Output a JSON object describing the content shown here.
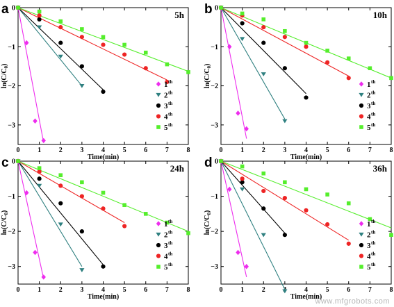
{
  "watermark": "www.mfgrobots.com",
  "colors": {
    "1th": "#ee2cee",
    "2th": "#2f8080",
    "3th": "#000000",
    "4th": "#ee2424",
    "5th": "#55ee2c"
  },
  "markers": {
    "1th": "diamond",
    "2th": "triangle-down",
    "3th": "circle",
    "4th": "circle",
    "5th": "square"
  },
  "chart_data": [
    {
      "type": "scatter",
      "panel": "a",
      "title": "5h",
      "xlabel": "Time(min)",
      "ylabel": "ln(C/C0)",
      "xlim": [
        0,
        8
      ],
      "ylim": [
        -3.5,
        0
      ],
      "xticks": [
        "0",
        "1",
        "2",
        "3",
        "4",
        "5",
        "6",
        "7",
        "8"
      ],
      "yticks": [
        "0",
        "-1",
        "-2",
        "-3"
      ],
      "legend_position": "right",
      "series": [
        {
          "name": "1th",
          "x": [
            0,
            0.4,
            0.8,
            1.2
          ],
          "y": [
            0,
            -0.9,
            -2.9,
            -3.4
          ],
          "fit_end": [
            1.2,
            -3.45
          ]
        },
        {
          "name": "2th",
          "x": [
            0,
            1,
            2,
            3
          ],
          "y": [
            0,
            -0.5,
            -1.25,
            -2.0
          ],
          "fit_end": [
            3,
            -2.0
          ]
        },
        {
          "name": "3th",
          "x": [
            0,
            1,
            2,
            3,
            4
          ],
          "y": [
            0,
            -0.3,
            -0.9,
            -1.5,
            -2.15
          ],
          "fit_end": [
            4,
            -2.1
          ]
        },
        {
          "name": "4th",
          "x": [
            0,
            1,
            2,
            3,
            4,
            5,
            6,
            7
          ],
          "y": [
            0,
            -0.2,
            -0.5,
            -0.75,
            -0.95,
            -1.2,
            -1.55,
            -1.9
          ],
          "fit_end": [
            7,
            -1.85
          ]
        },
        {
          "name": "5th",
          "x": [
            0,
            1,
            2,
            3,
            4,
            5,
            6,
            7,
            8
          ],
          "y": [
            0,
            -0.1,
            -0.35,
            -0.55,
            -0.75,
            -0.95,
            -1.15,
            -1.45,
            -1.65
          ],
          "fit_end": [
            8,
            -1.63
          ]
        }
      ]
    },
    {
      "type": "scatter",
      "panel": "b",
      "title": "10h",
      "xlabel": "Time(min)",
      "ylabel": "ln(C/C0)",
      "xlim": [
        0,
        8
      ],
      "ylim": [
        -3.5,
        0
      ],
      "xticks": [
        "0",
        "1",
        "2",
        "3",
        "4",
        "5",
        "6",
        "7",
        "8"
      ],
      "yticks": [
        "0",
        "-1",
        "-2",
        "-3"
      ],
      "legend_position": "right",
      "series": [
        {
          "name": "1th",
          "x": [
            0,
            0.4,
            0.8,
            1.2
          ],
          "y": [
            0,
            -1.0,
            -2.7,
            -3.1
          ],
          "fit_end": [
            1.2,
            -3.35
          ]
        },
        {
          "name": "2th",
          "x": [
            0,
            1,
            2,
            3
          ],
          "y": [
            0,
            -0.8,
            -1.7,
            -2.9
          ],
          "fit_end": [
            3,
            -2.85
          ]
        },
        {
          "name": "3th",
          "x": [
            0,
            1,
            2,
            3,
            4
          ],
          "y": [
            0,
            -0.4,
            -0.9,
            -1.55,
            -2.3
          ],
          "fit_end": [
            4,
            -2.2
          ]
        },
        {
          "name": "4th",
          "x": [
            0,
            1,
            2,
            3,
            4,
            5,
            6
          ],
          "y": [
            0,
            -0.2,
            -0.5,
            -0.75,
            -1.0,
            -1.4,
            -1.8
          ],
          "fit_end": [
            6,
            -1.75
          ]
        },
        {
          "name": "5th",
          "x": [
            0,
            1,
            2,
            3,
            4,
            5,
            6,
            7,
            8
          ],
          "y": [
            0,
            -0.15,
            -0.3,
            -0.6,
            -0.9,
            -1.1,
            -1.3,
            -1.55,
            -1.8
          ],
          "fit_end": [
            8,
            -1.8
          ]
        }
      ]
    },
    {
      "type": "scatter",
      "panel": "c",
      "title": "24h",
      "xlabel": "Time(min)",
      "ylabel": "ln(C/C0)",
      "xlim": [
        0,
        8
      ],
      "ylim": [
        -3.5,
        0
      ],
      "xticks": [
        "0",
        "1",
        "2",
        "3",
        "4",
        "5",
        "6",
        "7",
        "8"
      ],
      "yticks": [
        "0",
        "-1",
        "-2",
        "-3"
      ],
      "legend_position": "right",
      "series": [
        {
          "name": "1th",
          "x": [
            0,
            0.4,
            0.8,
            1.2
          ],
          "y": [
            0,
            -0.9,
            -2.6,
            -3.3
          ],
          "fit_end": [
            1.2,
            -3.35
          ]
        },
        {
          "name": "2th",
          "x": [
            0,
            1,
            2,
            3
          ],
          "y": [
            0,
            -0.7,
            -1.8,
            -3.1
          ],
          "fit_end": [
            3,
            -3.0
          ]
        },
        {
          "name": "3th",
          "x": [
            0,
            1,
            2,
            3,
            4
          ],
          "y": [
            0,
            -0.5,
            -1.2,
            -2.0,
            -3.0
          ],
          "fit_end": [
            4,
            -2.95
          ]
        },
        {
          "name": "4th",
          "x": [
            0,
            1,
            2,
            3,
            4,
            5
          ],
          "y": [
            0,
            -0.3,
            -0.7,
            -1.0,
            -1.35,
            -1.85
          ],
          "fit_end": [
            5,
            -1.75
          ]
        },
        {
          "name": "5th",
          "x": [
            0,
            1,
            2,
            3,
            4,
            5,
            6,
            7,
            8
          ],
          "y": [
            0,
            -0.2,
            -0.4,
            -0.6,
            -0.9,
            -1.25,
            -1.5,
            -1.75,
            -2.05
          ],
          "fit_end": [
            8,
            -2.0
          ]
        }
      ]
    },
    {
      "type": "scatter",
      "panel": "d",
      "title": "36h",
      "xlabel": "Time(min)",
      "ylabel": "ln(C/C0)",
      "xlim": [
        0,
        8
      ],
      "ylim": [
        -3.5,
        0
      ],
      "xticks": [
        "0",
        "1",
        "2",
        "3",
        "4",
        "5",
        "6",
        "7",
        "8"
      ],
      "yticks": [
        "0",
        "-1",
        "-2",
        "-3"
      ],
      "legend_position": "right",
      "series": [
        {
          "name": "1th",
          "x": [
            0,
            0.4,
            0.8,
            1.2
          ],
          "y": [
            0,
            -0.8,
            -2.6,
            -3.0
          ],
          "fit_end": [
            1.2,
            -3.3
          ]
        },
        {
          "name": "2th",
          "x": [
            0,
            1,
            2,
            3
          ],
          "y": [
            0,
            -0.8,
            -2.1,
            -3.7
          ],
          "fit_end": [
            3,
            -3.65
          ]
        },
        {
          "name": "3th",
          "x": [
            0,
            1,
            2,
            3
          ],
          "y": [
            0,
            -0.6,
            -1.35,
            -2.1
          ],
          "fit_end": [
            3,
            -2.05
          ]
        },
        {
          "name": "4th",
          "x": [
            0,
            1,
            2,
            3,
            4,
            5,
            6
          ],
          "y": [
            0,
            -0.5,
            -0.85,
            -1.05,
            -1.4,
            -1.8,
            -2.35
          ],
          "fit_end": [
            6,
            -2.25
          ]
        },
        {
          "name": "5th",
          "x": [
            0,
            1,
            2,
            3,
            4,
            5,
            6,
            7,
            8
          ],
          "y": [
            0,
            -0.15,
            -0.35,
            -0.6,
            -0.8,
            -0.95,
            -1.2,
            -1.65,
            -2.1
          ],
          "fit_end": [
            8,
            -1.9
          ]
        }
      ]
    }
  ]
}
